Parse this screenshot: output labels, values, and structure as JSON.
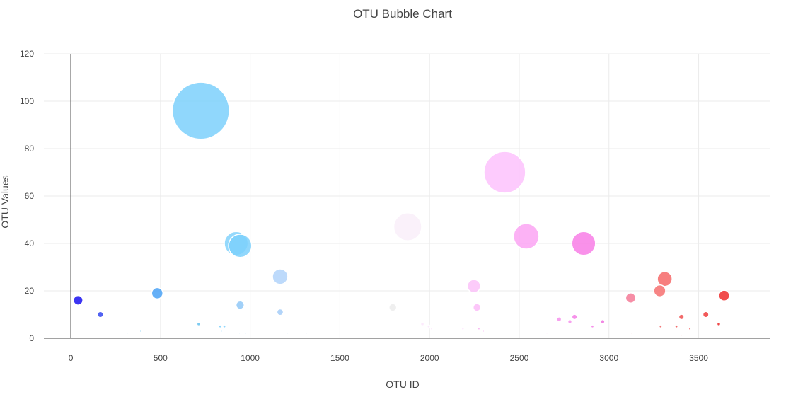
{
  "chart_data": {
    "type": "scatter",
    "title": "OTU Bubble Chart",
    "xlabel": "OTU ID",
    "ylabel": "OTU Values",
    "xlim": [
      -150,
      3900
    ],
    "ylim": [
      0,
      120
    ],
    "x_ticks": [
      0,
      500,
      1000,
      1500,
      2000,
      2500,
      3000,
      3500
    ],
    "y_ticks": [
      0,
      20,
      40,
      60,
      80,
      100,
      120
    ],
    "grid": true,
    "legend": "none",
    "colorscale": "Picnic (blue to red by OTU ID)",
    "series": [
      {
        "marker": "bubble (size proportional to value)",
        "points": [
          {
            "x": 41,
            "y": 16,
            "color": "#1a12f0"
          },
          {
            "x": 165,
            "y": 10,
            "color": "#3346f0"
          },
          {
            "x": 123,
            "y": 2,
            "color": "#66c2ee"
          },
          {
            "x": 315,
            "y": 2,
            "color": "#66c2ee"
          },
          {
            "x": 352,
            "y": 2,
            "color": "#66c2ee"
          },
          {
            "x": 389,
            "y": 3,
            "color": "#66c2ee"
          },
          {
            "x": 482,
            "y": 19,
            "color": "#4aa2f6"
          },
          {
            "x": 725,
            "y": 96,
            "color": "#7cd0fb"
          },
          {
            "x": 713,
            "y": 6,
            "color": "#66c2ee"
          },
          {
            "x": 833,
            "y": 5,
            "color": "#7cd0fb"
          },
          {
            "x": 856,
            "y": 5,
            "color": "#7cd0fb"
          },
          {
            "x": 840,
            "y": 3,
            "color": "#7cd0fb"
          },
          {
            "x": 922,
            "y": 40,
            "color": "#82d2fb"
          },
          {
            "x": 944,
            "y": 39,
            "color": "#7cd0fb"
          },
          {
            "x": 944,
            "y": 14,
            "color": "#90c8f7"
          },
          {
            "x": 940,
            "y": 2,
            "color": "#b6dcfb"
          },
          {
            "x": 975,
            "y": 2,
            "color": "#b6dcfb"
          },
          {
            "x": 1167,
            "y": 26,
            "color": "#b2d4fa"
          },
          {
            "x": 1167,
            "y": 11,
            "color": "#a4ccf8"
          },
          {
            "x": 1208,
            "y": 2,
            "color": "#c4defb"
          },
          {
            "x": 1314,
            "y": 2,
            "color": "#dce8fb"
          },
          {
            "x": 1795,
            "y": 13,
            "color": "#ececec"
          },
          {
            "x": 1878,
            "y": 47,
            "color": "#f9eff9"
          },
          {
            "x": 1960,
            "y": 6,
            "color": "#fbe6fb"
          },
          {
            "x": 1995,
            "y": 5,
            "color": "#fbe6fb"
          },
          {
            "x": 2011,
            "y": 4,
            "color": "#fbe6fb"
          },
          {
            "x": 2186,
            "y": 4,
            "color": "#fbd0fb"
          },
          {
            "x": 2247,
            "y": 22,
            "color": "#fbc2f9"
          },
          {
            "x": 2264,
            "y": 13,
            "color": "#fbbcf8"
          },
          {
            "x": 2275,
            "y": 4,
            "color": "#f8a8f0"
          },
          {
            "x": 2301,
            "y": 3,
            "color": "#f8a8f0"
          },
          {
            "x": 2419,
            "y": 70,
            "color": "#fdc2fd"
          },
          {
            "x": 2539,
            "y": 43,
            "color": "#fba5f3"
          },
          {
            "x": 2654,
            "y": 2,
            "color": "#fbc0f3"
          },
          {
            "x": 2722,
            "y": 8,
            "color": "#f690ec"
          },
          {
            "x": 2782,
            "y": 7,
            "color": "#f690ec"
          },
          {
            "x": 2808,
            "y": 9,
            "color": "#f47ee6"
          },
          {
            "x": 2859,
            "y": 40,
            "color": "#f87ee6"
          },
          {
            "x": 2908,
            "y": 5,
            "color": "#f47ee6"
          },
          {
            "x": 2965,
            "y": 7,
            "color": "#ee72de"
          },
          {
            "x": 3121,
            "y": 17,
            "color": "#f47a96"
          },
          {
            "x": 3127,
            "y": 2,
            "color": "#f5a5a5"
          },
          {
            "x": 3283,
            "y": 20,
            "color": "#f67070"
          },
          {
            "x": 3311,
            "y": 25,
            "color": "#f66868"
          },
          {
            "x": 3288,
            "y": 5,
            "color": "#f06060"
          },
          {
            "x": 3376,
            "y": 5,
            "color": "#f05050"
          },
          {
            "x": 3404,
            "y": 9,
            "color": "#f05050"
          },
          {
            "x": 3403,
            "y": 1,
            "color": "#f07070"
          },
          {
            "x": 3451,
            "y": 4,
            "color": "#f04040"
          },
          {
            "x": 3540,
            "y": 10,
            "color": "#f03c3c"
          },
          {
            "x": 3612,
            "y": 6,
            "color": "#ec2828"
          },
          {
            "x": 3642,
            "y": 18,
            "color": "#ee2e2e"
          }
        ]
      }
    ]
  }
}
